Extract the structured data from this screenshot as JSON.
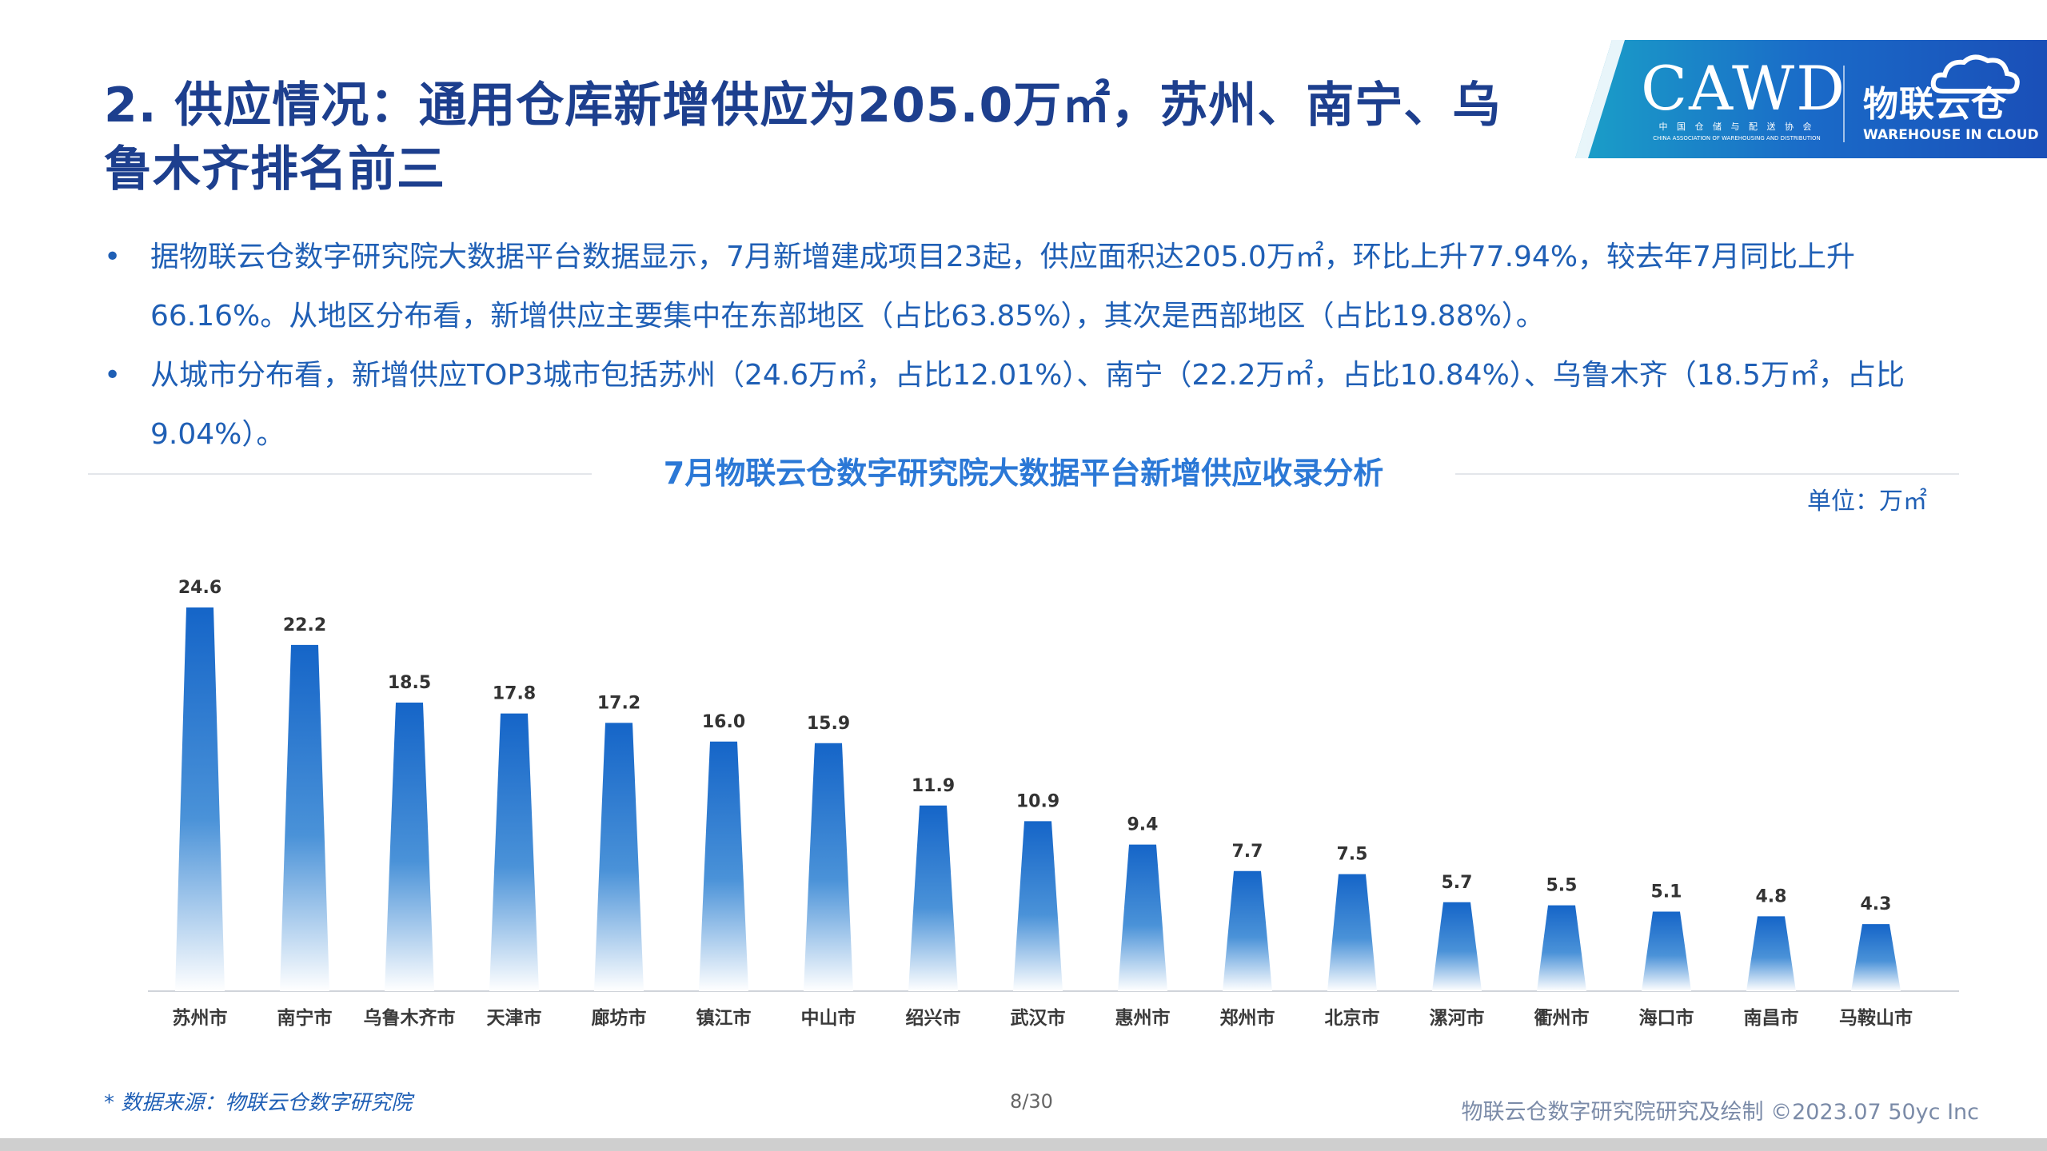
{
  "header": {
    "title": "2. 供应情况：通用仓库新增供应为205.0万㎡，苏州、南宁、乌鲁木齐排名前三"
  },
  "logo": {
    "cawd": "CAWD",
    "cawd_sub_cn": "中 国 仓 储 与 配 送 协 会",
    "cawd_sub_en": "CHINA ASSOCIATION OF WAREHOUSING AND DISTRIBUTION",
    "brand_cn": "物联云仓",
    "brand_en": "WAREHOUSE IN CLOUD"
  },
  "bullets": [
    "据物联云仓数字研究院大数据平台数据显示，7月新增建成项目23起，供应面积达205.0万㎡，环比上升77.94%，较去年7月同比上升66.16%。从地区分布看，新增供应主要集中在东部地区（占比63.85%），其次是西部地区（占比19.88%）。",
    "从城市分布看，新增供应TOP3城市包括苏州（24.6万㎡，占比12.01%）、南宁（22.2万㎡，占比10.84%）、乌鲁木齐（18.5万㎡，占比9.04%）。"
  ],
  "chart_data": {
    "type": "bar",
    "title": "7月物联云仓数字研究院大数据平台新增供应收录分析",
    "unit": "单位：万㎡",
    "categories": [
      "苏州市",
      "南宁市",
      "乌鲁木齐市",
      "天津市",
      "廊坊市",
      "镇江市",
      "中山市",
      "绍兴市",
      "武汉市",
      "惠州市",
      "郑州市",
      "北京市",
      "漯河市",
      "衢州市",
      "海口市",
      "南昌市",
      "马鞍山市"
    ],
    "values": [
      24.6,
      22.2,
      18.5,
      17.8,
      17.2,
      16.0,
      15.9,
      11.9,
      10.9,
      9.4,
      7.7,
      7.5,
      5.7,
      5.5,
      5.1,
      4.8,
      4.3
    ],
    "value_labels": [
      "24.6",
      "22.2",
      "18.5",
      "17.8",
      "17.2",
      "16.0",
      "15.9",
      "11.9",
      "10.9",
      "9.4",
      "7.7",
      "7.5",
      "5.7",
      "5.5",
      "5.1",
      "4.8",
      "4.3"
    ],
    "ylim": [
      0,
      24.6
    ],
    "grid": false,
    "legend": "none",
    "bar_color_top": "#1565c8",
    "bar_color_bottom": "#ffffff"
  },
  "footer": {
    "source": "* 数据来源：物联云仓数字研究院",
    "page": "8/30",
    "credit": "物联云仓数字研究院研究及绘制    ©2023.07 50yc Inc"
  },
  "colors": {
    "title": "#1d3f8e",
    "text": "#1f5fb5",
    "chart_title": "#2b78d6",
    "logo_blue": "#1a5bc4"
  }
}
